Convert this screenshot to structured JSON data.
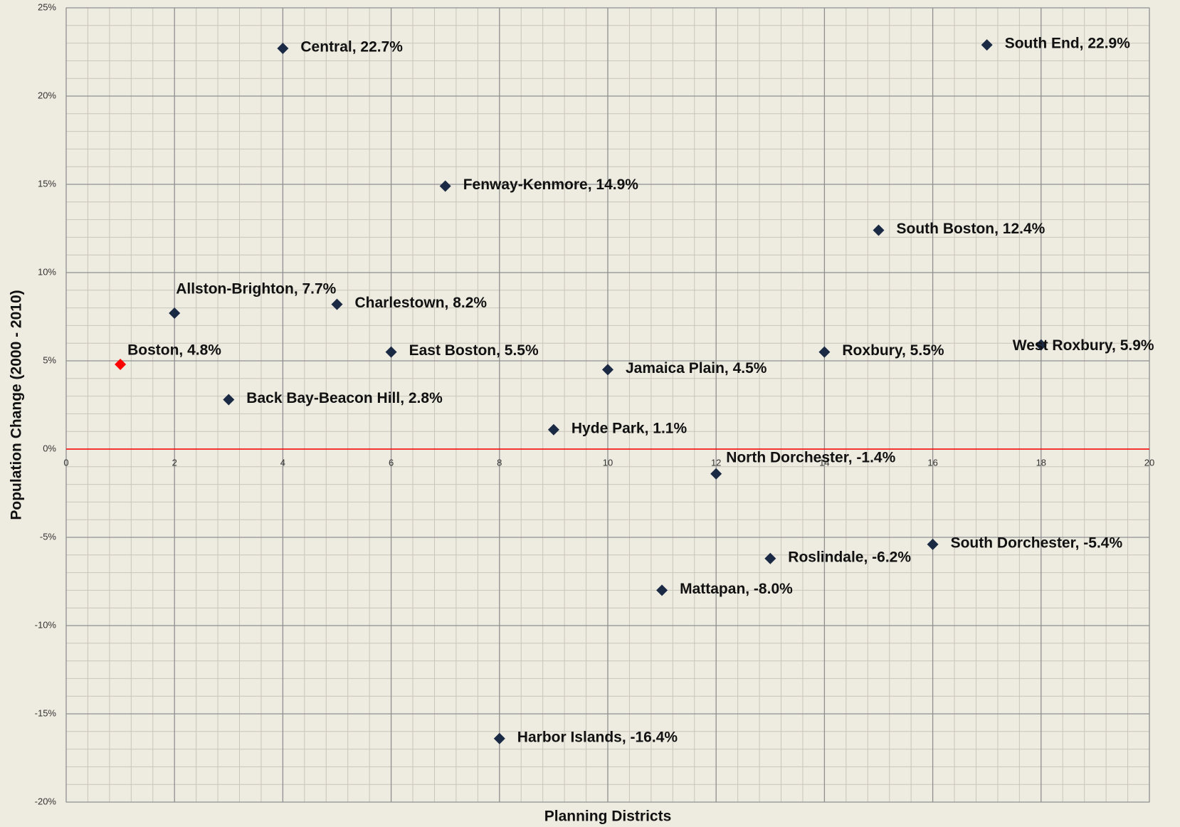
{
  "chart_data": {
    "type": "scatter",
    "x_label": "Planning Districts",
    "y_label": "Population Change (2000 - 2010)",
    "x": [
      1,
      2,
      3,
      4,
      5,
      6,
      7,
      8,
      9,
      10,
      11,
      12,
      13,
      14,
      15,
      16,
      17,
      18
    ],
    "values": [
      4.8,
      7.7,
      2.8,
      22.7,
      8.2,
      5.5,
      14.9,
      -16.4,
      1.1,
      4.5,
      -8.0,
      -1.4,
      -6.2,
      5.5,
      12.4,
      -5.4,
      22.9,
      5.9
    ],
    "value_labels": [
      "Boston, 4.8%",
      "Allston-Brighton, 7.7%",
      "Back Bay-Beacon Hill, 2.8%",
      "Central, 22.7%",
      "Charlestown, 8.2%",
      "East Boston, 5.5%",
      "Fenway-Kenmore, 14.9%",
      "Harbor Islands, -16.4%",
      "Hyde Park, 1.1%",
      "Jamaica Plain, 4.5%",
      "Mattapan, -8.0%",
      "North Dorchester, -1.4%",
      "Roslindale, -6.2%",
      "Roxbury, 5.5%",
      "South Boston, 12.4%",
      "South Dorchester, -5.4%",
      "South End, 22.9%",
      "West Roxbury, 5.9%"
    ],
    "colors": [
      "#ff0000",
      "#1b2a44",
      "#1b2a44",
      "#1b2a44",
      "#1b2a44",
      "#1b2a44",
      "#1b2a44",
      "#1b2a44",
      "#1b2a44",
      "#1b2a44",
      "#1b2a44",
      "#1b2a44",
      "#1b2a44",
      "#1b2a44",
      "#1b2a44",
      "#1b2a44",
      "#1b2a44",
      "#1b2a44"
    ],
    "marker": "diamond",
    "xlim": [
      0,
      20
    ],
    "xticks": [
      0,
      2,
      4,
      6,
      8,
      10,
      12,
      14,
      16,
      18,
      20
    ],
    "ylim": [
      -20,
      25
    ],
    "yticks": [
      {
        "value": -20,
        "label": "-20%"
      },
      {
        "value": -15,
        "label": "-15%"
      },
      {
        "value": -10,
        "label": "-10%"
      },
      {
        "value": -5,
        "label": "-5%"
      },
      {
        "value": 0,
        "label": "0%"
      },
      {
        "value": 5,
        "label": "5%"
      },
      {
        "value": 10,
        "label": "10%"
      },
      {
        "value": 15,
        "label": "15%"
      },
      {
        "value": 20,
        "label": "20%"
      },
      {
        "value": 25,
        "label": "25%"
      }
    ],
    "grid": true,
    "minor_divisions": 5,
    "zero_line_color": "#ff0000"
  }
}
